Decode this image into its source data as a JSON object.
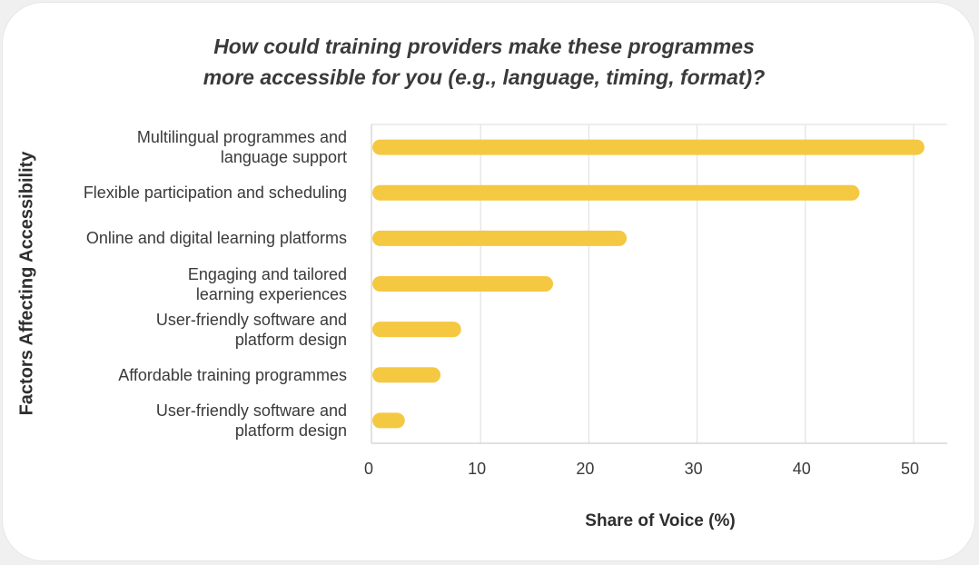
{
  "chart_data": {
    "type": "bar",
    "orientation": "horizontal",
    "title": [
      "How could training providers make these programmes",
      "more accessible for you (e.g., language, timing, format)?"
    ],
    "xlabel": "Share of Voice (%)",
    "ylabel": "Factors Affecting Accessibility",
    "categories": [
      "Multilingual programmes and\nlanguage support",
      "Flexible participation and scheduling",
      "Online and digital learning platforms",
      "Engaging and tailored\nlearning experiences",
      "User-friendly software and\nplatform design",
      "Affordable training programmes",
      "User-friendly software and\nplatform design"
    ],
    "values": [
      51,
      45,
      23.5,
      16.7,
      8.2,
      6.3,
      3
    ],
    "xlim": [
      0,
      52
    ],
    "xticks": [
      0,
      10,
      20,
      30,
      40,
      50
    ],
    "grid": true,
    "bar_color": "#f5c842",
    "grid_color": "#e3e3e3"
  }
}
